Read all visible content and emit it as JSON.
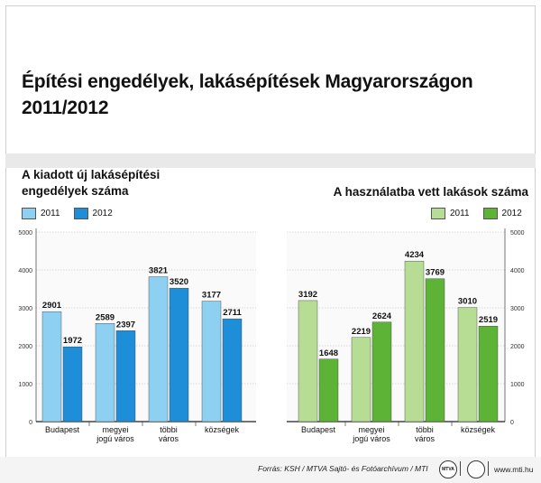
{
  "title_line1": "Építési engedélyek, lakásépítések Magyarországon",
  "title_line2": "2011/2012",
  "source": "Forrás: KSH / MTVA Sajtó- és Fotóarchívum / MTI",
  "url": "www.mti.hu",
  "logo1_text": "MTVA",
  "chart_data": [
    {
      "type": "bar",
      "title": "A kiadott új lakásépítési\nengedélyek száma",
      "categories": [
        "Budapest",
        "megyei\njogú város",
        "többi\nváros",
        "községek"
      ],
      "series": [
        {
          "name": "2011",
          "values": [
            2901,
            2589,
            3821,
            3177
          ],
          "color": "#8ed0f2"
        },
        {
          "name": "2012",
          "values": [
            1972,
            2397,
            3520,
            2711
          ],
          "color": "#1f8ed8"
        }
      ],
      "ylim": [
        0,
        5000
      ],
      "yticks": [
        "0",
        "1000",
        "2000",
        "3000",
        "4000",
        "5000"
      ],
      "grid": true,
      "legend": "top-left"
    },
    {
      "type": "bar",
      "title": "A használatba vett lakások száma",
      "categories": [
        "Budapest",
        "megyei\njogú város",
        "többi\nváros",
        "községek"
      ],
      "series": [
        {
          "name": "2011",
          "values": [
            3192,
            2219,
            4234,
            3010
          ],
          "color": "#b7dd95"
        },
        {
          "name": "2012",
          "values": [
            1648,
            2624,
            3769,
            2519
          ],
          "color": "#5cb335"
        }
      ],
      "ylim": [
        0,
        5000
      ],
      "yticks": [
        "0",
        "1000",
        "2000",
        "3000",
        "4000",
        "5000"
      ],
      "grid": true,
      "legend": "top-right"
    }
  ]
}
